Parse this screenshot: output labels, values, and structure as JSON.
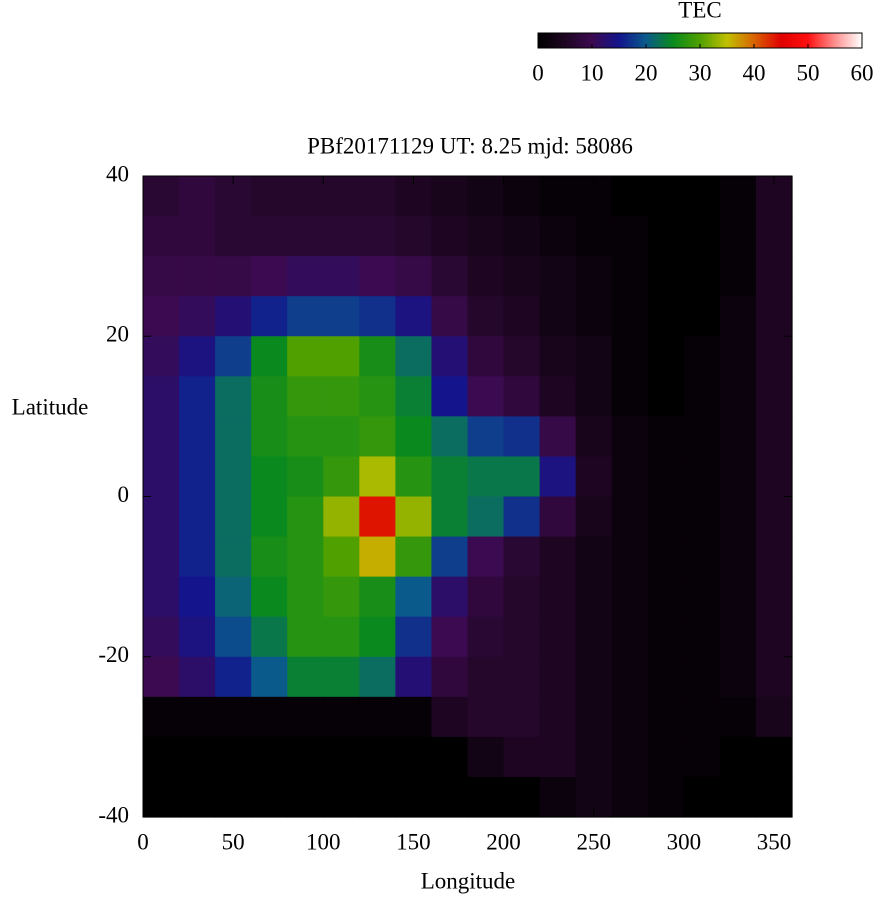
{
  "chart_data": {
    "type": "heatmap",
    "title": "PBf20171129  UT: 8.25  mjd: 58086",
    "xlabel": "Longitude",
    "ylabel": "Latitude",
    "x": [
      10,
      30,
      50,
      70,
      90,
      110,
      130,
      150,
      170,
      190,
      210,
      230,
      250,
      270,
      290,
      310,
      330,
      350
    ],
    "y": [
      37.5,
      32.5,
      27.5,
      22.5,
      17.5,
      12.5,
      7.5,
      2.5,
      -2.5,
      -7.5,
      -12.5,
      -17.5,
      -22.5,
      -27.5,
      -32.5,
      -37.5
    ],
    "values": [
      [
        7,
        8,
        7,
        6,
        6,
        6,
        6,
        5,
        4,
        3,
        2,
        1,
        1,
        0,
        0,
        0,
        1,
        5
      ],
      [
        8,
        8,
        7,
        7,
        7,
        7,
        7,
        6,
        5,
        4,
        3,
        2,
        1,
        1,
        0,
        0,
        1,
        5
      ],
      [
        9,
        9,
        9,
        10,
        11,
        11,
        10,
        9,
        7,
        5,
        4,
        3,
        2,
        1,
        0,
        0,
        1,
        5
      ],
      [
        10,
        11,
        13,
        16,
        18,
        18,
        17,
        14,
        9,
        6,
        5,
        3,
        2,
        1,
        0,
        0,
        2,
        5
      ],
      [
        11,
        14,
        18,
        25,
        30,
        30,
        26,
        22,
        13,
        8,
        6,
        4,
        3,
        1,
        0,
        1,
        2,
        5
      ],
      [
        12,
        16,
        22,
        26,
        28,
        28,
        27,
        24,
        15,
        10,
        8,
        5,
        3,
        1,
        0,
        1,
        2,
        5
      ],
      [
        12,
        16,
        22,
        26,
        27,
        27,
        28,
        25,
        22,
        18,
        17,
        9,
        4,
        2,
        1,
        1,
        2,
        5
      ],
      [
        12,
        16,
        22,
        25,
        26,
        28,
        34,
        27,
        24,
        23,
        23,
        14,
        5,
        2,
        1,
        1,
        2,
        5
      ],
      [
        12,
        16,
        22,
        25,
        27,
        33,
        44,
        33,
        24,
        22,
        17,
        8,
        4,
        2,
        1,
        1,
        2,
        5
      ],
      [
        12,
        16,
        22,
        26,
        27,
        30,
        36,
        28,
        18,
        10,
        7,
        5,
        3,
        2,
        1,
        1,
        2,
        5
      ],
      [
        12,
        15,
        21,
        25,
        27,
        28,
        26,
        20,
        12,
        8,
        6,
        5,
        3,
        2,
        1,
        1,
        2,
        5
      ],
      [
        11,
        14,
        19,
        23,
        27,
        27,
        25,
        17,
        10,
        7,
        6,
        5,
        3,
        2,
        1,
        1,
        2,
        5
      ],
      [
        10,
        12,
        16,
        20,
        24,
        24,
        22,
        13,
        8,
        6,
        6,
        5,
        3,
        2,
        1,
        1,
        2,
        5
      ],
      [
        1,
        1,
        1,
        1,
        1,
        1,
        1,
        1,
        5,
        6,
        6,
        5,
        3,
        2,
        1,
        1,
        1,
        4
      ],
      [
        0,
        0,
        0,
        0,
        0,
        0,
        0,
        0,
        0,
        3,
        5,
        5,
        3,
        2,
        1,
        1,
        0,
        0
      ],
      [
        0,
        0,
        0,
        0,
        0,
        0,
        0,
        0,
        0,
        0,
        0,
        2,
        3,
        2,
        1,
        0,
        0,
        0
      ]
    ],
    "xlim": [
      0,
      360
    ],
    "xticks": [
      0,
      50,
      100,
      150,
      200,
      250,
      300,
      350
    ],
    "ylim": [
      -40,
      40
    ],
    "yticks": [
      -40,
      -20,
      0,
      20,
      40
    ],
    "colorbar": {
      "title": "TEC",
      "zlim": [
        0,
        60
      ],
      "zticks": [
        0,
        10,
        20,
        30,
        40,
        50,
        60
      ],
      "colormap": [
        "#000000",
        "#1e0622",
        "#3c0a50",
        "#14148c",
        "#0a5a8c",
        "#0a8a1e",
        "#50a000",
        "#c0c000",
        "#d86400",
        "#e00000",
        "#ff1010",
        "#ff9090",
        "#ffffff"
      ]
    }
  }
}
